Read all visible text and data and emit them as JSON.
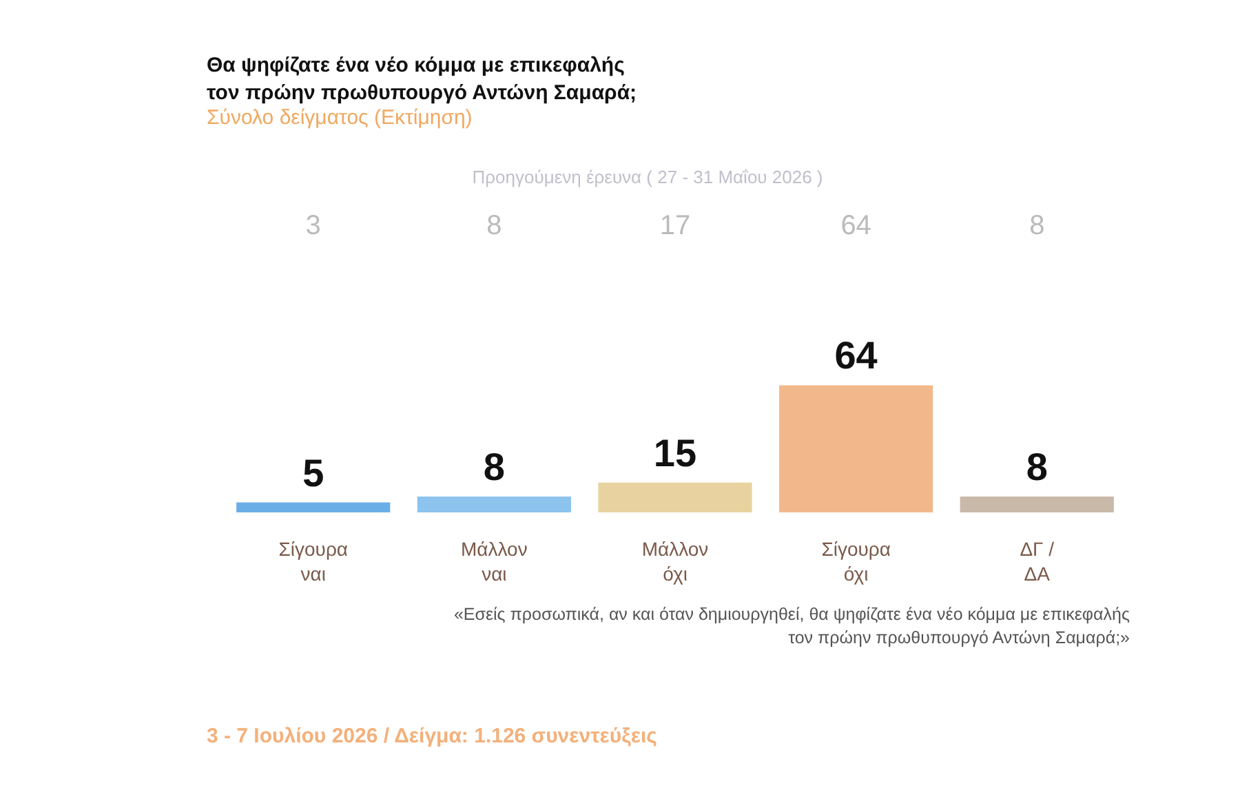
{
  "chart_data": {
    "type": "bar",
    "title": "Θα ψηφίζατε ένα νέο κόμμα με επικεφαλής\nτον πρώην πρωθυπουργό Αντώνη Σαμαρά;",
    "subtitle": "Σύνολο δείγματος (Εκτίμηση)",
    "categories": [
      "Σίγουρα\nναι",
      "Μάλλον\nναι",
      "Μάλλον\nόχι",
      "Σίγουρα\nόχι",
      "ΔΓ /\nΔΑ"
    ],
    "values": [
      5,
      8,
      15,
      64,
      8
    ],
    "colors": [
      "#6aaee8",
      "#8cc4ee",
      "#e8d3a0",
      "#f2b88c",
      "#c9b9a8"
    ],
    "data_labels": true,
    "annotations": [
      "Προηγούμενη έρευνα ( 27 - 31 Μαΐου 2026 )",
      "3",
      "8",
      "17",
      "64",
      "8",
      "«Εσείς προσωπικά, αν και όταν δημιουργηθεί, θα ψηφίζατε ένα νέο κόμμα με επικεφαλής\nτον πρώην πρωθυπουργό Αντώνη Σαμαρά;»",
      "3 - 7 Ιουλίου 2026  /  Δείγμα:  1.126 συνεντεύξεις"
    ]
  }
}
